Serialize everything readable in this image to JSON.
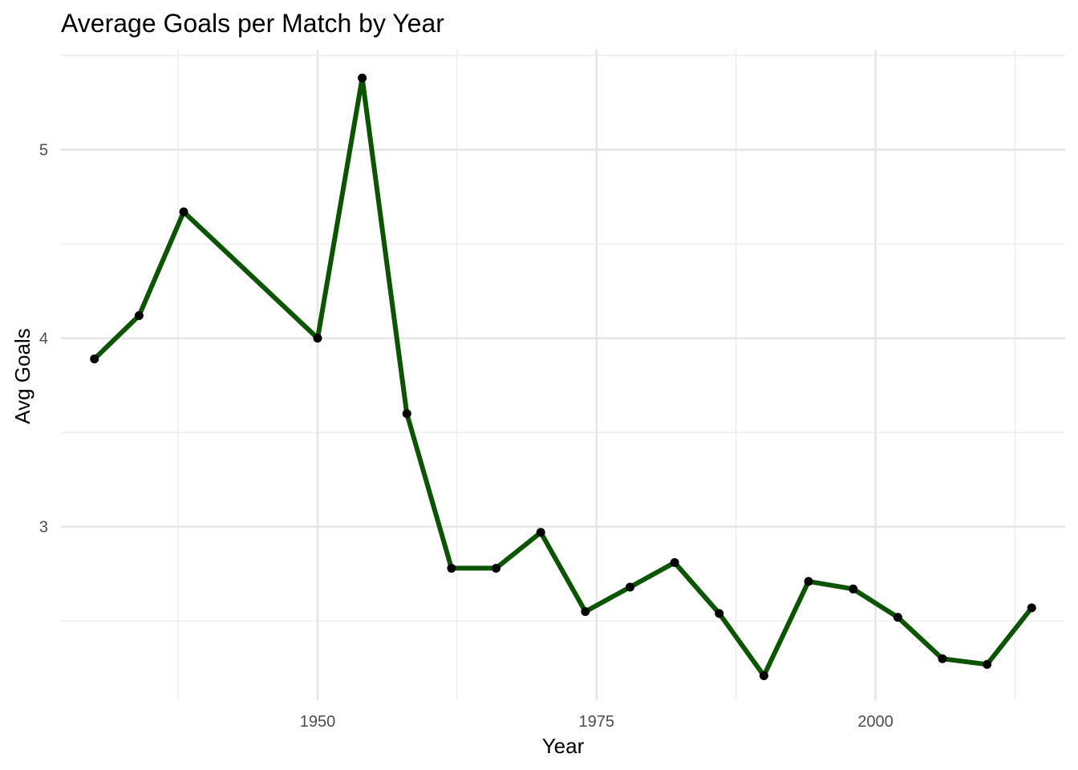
{
  "chart_data": {
    "type": "line",
    "title": "Average Goals per Match by Year",
    "xlabel": "Year",
    "ylabel": "Avg Goals",
    "xlim": [
      1927,
      2017
    ],
    "ylim": [
      2.08,
      5.53
    ],
    "x_ticks": [
      1950,
      1975,
      2000
    ],
    "y_ticks": [
      3,
      4,
      5
    ],
    "x_minor_ticks": [
      1937.5,
      1962.5,
      1987.5,
      2012.5
    ],
    "y_minor_ticks": [
      2.5,
      3.5,
      4.5,
      5.5
    ],
    "grid": true,
    "legend": "none",
    "line_color": "#0b5400",
    "point_color": "#000000",
    "series": [
      {
        "x": [
          1930,
          1934,
          1938,
          1950,
          1954,
          1958,
          1962,
          1966,
          1970,
          1974,
          1978,
          1982,
          1986,
          1990,
          1994,
          1998,
          2002,
          2006,
          2010,
          2014
        ],
        "values": [
          3.89,
          4.12,
          4.67,
          4.0,
          5.38,
          3.6,
          2.78,
          2.78,
          2.97,
          2.55,
          2.68,
          2.81,
          2.54,
          2.21,
          2.71,
          2.67,
          2.52,
          2.3,
          2.27,
          2.57
        ]
      }
    ]
  }
}
